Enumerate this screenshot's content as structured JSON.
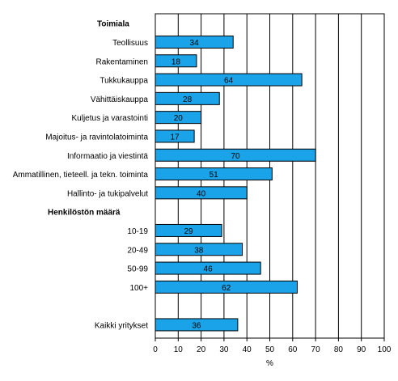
{
  "chart_data": {
    "type": "bar",
    "orientation": "horizontal",
    "xlabel": "%",
    "xlim": [
      0,
      100
    ],
    "x_ticks": [
      "0",
      "10",
      "20",
      "30",
      "40",
      "50",
      "60",
      "70",
      "80",
      "90",
      "100"
    ],
    "bar_color": "#1aa3e8",
    "grid": "vertical lines on",
    "sections": [
      {
        "title": "Toimiala",
        "categories": [
          "Teollisuus",
          "Rakentaminen",
          "Tukkukauppa",
          "Vähittäiskauppa",
          "Kuljetus ja varastointi",
          "Majoitus- ja ravintolatoiminta",
          "Informaatio ja viestintä",
          "Ammatillinen, tieteell. ja tekn. toiminta",
          "Hallinto- ja tukipalvelut"
        ],
        "values": [
          34,
          18,
          64,
          28,
          20,
          17,
          70,
          51,
          40
        ]
      },
      {
        "title": "Henkilöstön määrä",
        "categories": [
          "10-19",
          "20-49",
          "50-99",
          "100+"
        ],
        "values": [
          29,
          38,
          46,
          62
        ]
      },
      {
        "title": "",
        "categories": [
          "Kaikki yritykset"
        ],
        "values": [
          36
        ]
      }
    ]
  }
}
